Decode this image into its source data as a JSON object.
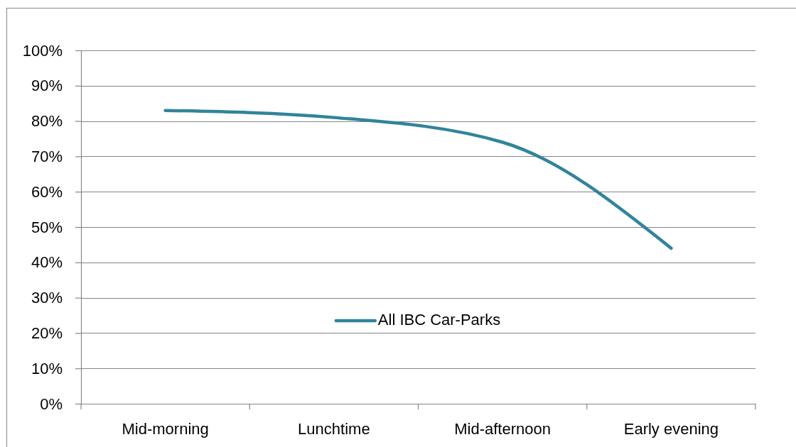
{
  "chart_data": {
    "type": "line",
    "categories": [
      "Mid-morning",
      "Lunchtime",
      "Mid-afternoon",
      "Early evening"
    ],
    "series": [
      {
        "name": "All IBC Car-Parks",
        "color": "#31849b",
        "values": [
          83,
          81,
          74,
          44
        ]
      }
    ],
    "ylim": [
      0,
      100
    ],
    "yticks": [
      {
        "value": 0,
        "label": "0%"
      },
      {
        "value": 10,
        "label": "10%"
      },
      {
        "value": 20,
        "label": "20%"
      },
      {
        "value": 30,
        "label": "30%"
      },
      {
        "value": 40,
        "label": "40%"
      },
      {
        "value": 50,
        "label": "50%"
      },
      {
        "value": 60,
        "label": "60%"
      },
      {
        "value": 70,
        "label": "70%"
      },
      {
        "value": 80,
        "label": "80%"
      },
      {
        "value": 90,
        "label": "90%"
      },
      {
        "value": 100,
        "label": "100%"
      }
    ],
    "grid": "y",
    "legend": "bottom"
  }
}
